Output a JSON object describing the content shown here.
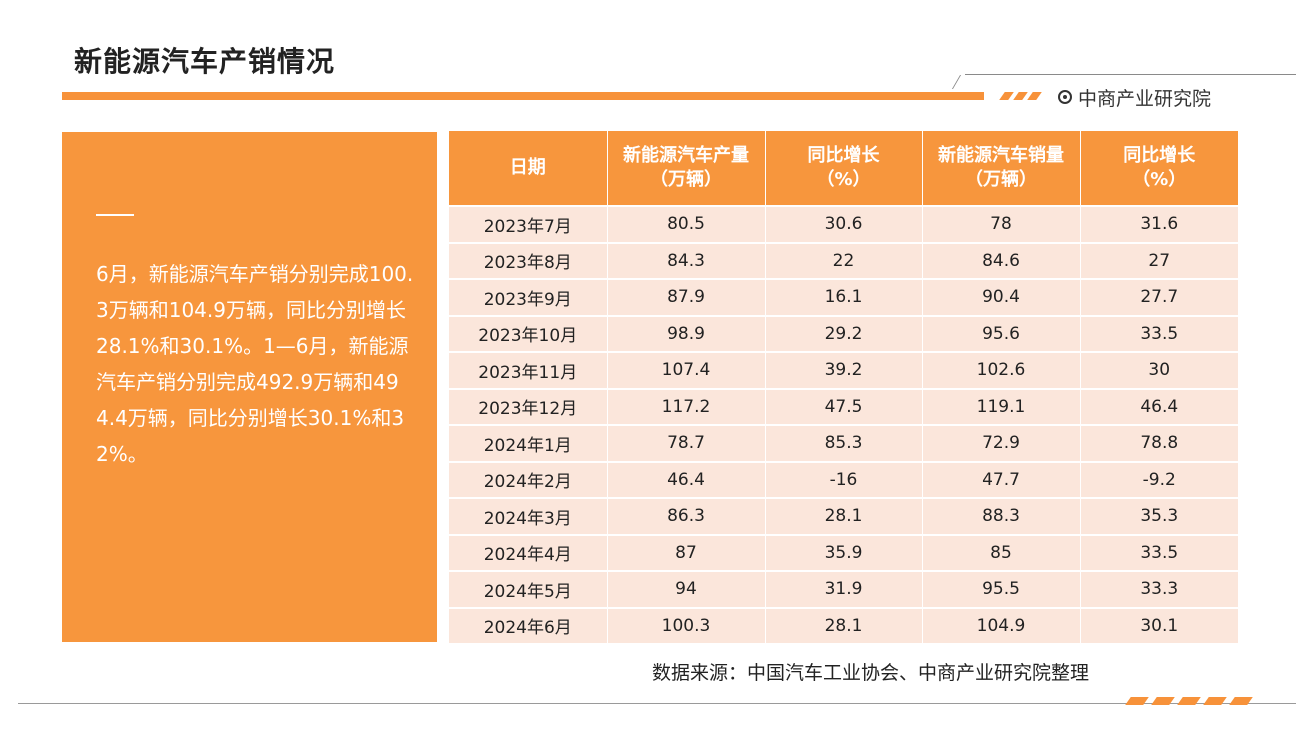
{
  "title": "新能源汽车产销情况",
  "brand": {
    "name": "中商产业研究院",
    "icon": "target-icon"
  },
  "summary": {
    "text": "6月，新能源汽车产销分别完成100.3万辆和104.9万辆，同比分别增长28.1%和30.1%。1—6月，新能源汽车产销分别完成492.9万辆和494.4万辆，同比分别增长30.1%和32%。"
  },
  "table": {
    "headers": [
      "日期",
      "新能源汽车产量（万辆）",
      "同比增长（%）",
      "新能源汽车销量（万辆）",
      "同比增长（%）"
    ],
    "rows": [
      [
        "2023年7月",
        "80.5",
        "30.6",
        "78",
        "31.6"
      ],
      [
        "2023年8月",
        "84.3",
        "22",
        "84.6",
        "27"
      ],
      [
        "2023年9月",
        "87.9",
        "16.1",
        "90.4",
        "27.7"
      ],
      [
        "2023年10月",
        "98.9",
        "29.2",
        "95.6",
        "33.5"
      ],
      [
        "2023年11月",
        "107.4",
        "39.2",
        "102.6",
        "30"
      ],
      [
        "2023年12月",
        "117.2",
        "47.5",
        "119.1",
        "46.4"
      ],
      [
        "2024年1月",
        "78.7",
        "85.3",
        "72.9",
        "78.8"
      ],
      [
        "2024年2月",
        "46.4",
        "-16",
        "47.7",
        "-9.2"
      ],
      [
        "2024年3月",
        "86.3",
        "28.1",
        "88.3",
        "35.3"
      ],
      [
        "2024年4月",
        "87",
        "35.9",
        "85",
        "33.5"
      ],
      [
        "2024年5月",
        "94",
        "31.9",
        "95.5",
        "33.3"
      ],
      [
        "2024年6月",
        "100.3",
        "28.1",
        "104.9",
        "30.1"
      ]
    ]
  },
  "source": "数据来源：中国汽车工业协会、中商产业研究院整理",
  "colors": {
    "accent": "#f7963d",
    "row_fill": "#fbe6db"
  }
}
